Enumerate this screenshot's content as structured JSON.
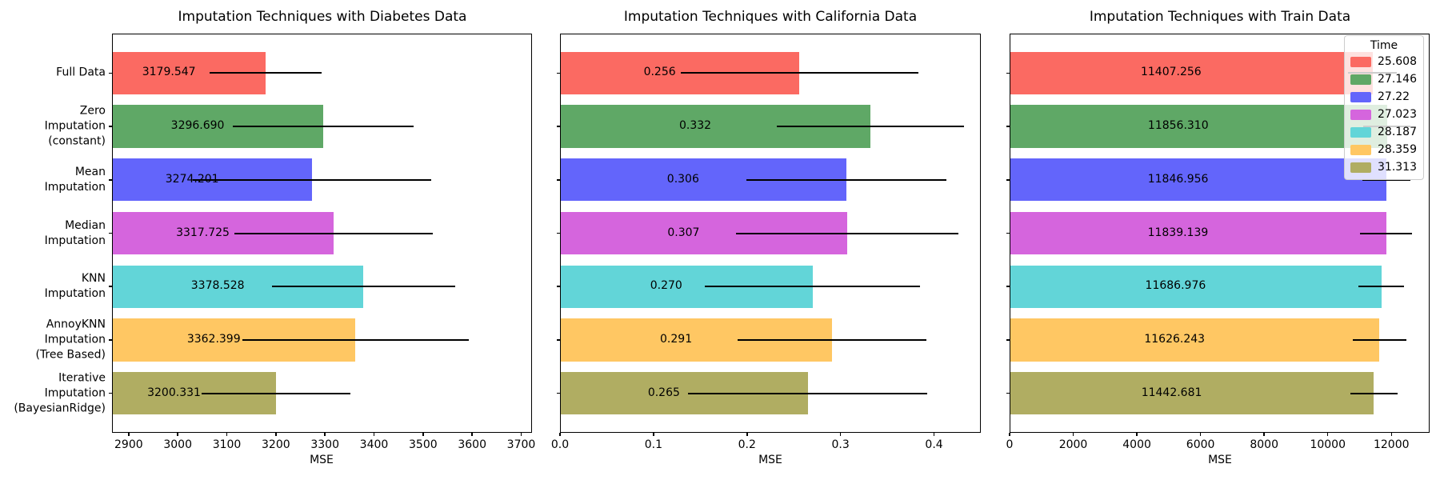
{
  "figure": {
    "background": "#ffffff"
  },
  "palette": [
    "#fb6a62",
    "#5fa866",
    "#6365fb",
    "#d565dd",
    "#62d5d8",
    "#ffc763",
    "#b0ad62"
  ],
  "error_bar_color": "#000000",
  "chart_data": [
    {
      "type": "bar",
      "orientation": "horizontal",
      "title": "Imputation Techniques with Diabetes Data",
      "xlabel": "MSE",
      "categories": [
        "Full Data",
        "Zero\nImputation\n(constant)",
        "Mean\nImputation",
        "Median\nImputation",
        "KNN\nImputation",
        "AnnoyKNN\nImputation\n(Tree Based)",
        "Iterative\nImputation\n(BayesianRidge)"
      ],
      "values": [
        3179.547,
        3296.69,
        3274.201,
        3317.725,
        3378.528,
        3362.399,
        3200.331
      ],
      "bar_labels": [
        "3179.547",
        "3296.690",
        "3274.201",
        "3317.725",
        "3378.528",
        "3362.399",
        "3200.331"
      ],
      "xerr": [
        114,
        184,
        243,
        202,
        187,
        230,
        152
      ],
      "xlim": [
        2866,
        3722
      ],
      "xticks": [
        2900,
        3000,
        3100,
        3200,
        3300,
        3400,
        3500,
        3600,
        3700
      ],
      "xtick_labels": [
        "2900",
        "3000",
        "3100",
        "3200",
        "3300",
        "3400",
        "3500",
        "3600",
        "3700"
      ],
      "show_category_labels": true,
      "grid": false
    },
    {
      "type": "bar",
      "orientation": "horizontal",
      "title": "Imputation Techniques with California Data",
      "xlabel": "MSE",
      "categories": [
        "Full Data",
        "Zero\nImputation\n(constant)",
        "Mean\nImputation",
        "Median\nImputation",
        "KNN\nImputation",
        "AnnoyKNN\nImputation\n(Tree Based)",
        "Iterative\nImputation\n(BayesianRidge)"
      ],
      "values": [
        0.256,
        0.332,
        0.306,
        0.307,
        0.27,
        0.291,
        0.265
      ],
      "bar_labels": [
        "0.256",
        "0.332",
        "0.306",
        "0.307",
        "0.270",
        "0.291",
        "0.265"
      ],
      "xerr": [
        0.127,
        0.1,
        0.107,
        0.119,
        0.115,
        0.101,
        0.128
      ],
      "xlim": [
        0,
        0.45
      ],
      "xticks": [
        0.0,
        0.1,
        0.2,
        0.3,
        0.4
      ],
      "xtick_labels": [
        "0.0",
        "0.1",
        "0.2",
        "0.3",
        "0.4"
      ],
      "show_category_labels": false,
      "grid": false
    },
    {
      "type": "bar",
      "orientation": "horizontal",
      "title": "Imputation Techniques with Train Data",
      "xlabel": "MSE",
      "categories": [
        "Full Data",
        "Zero\nImputation\n(constant)",
        "Mean\nImputation",
        "Median\nImputation",
        "KNN\nImputation",
        "AnnoyKNN\nImputation\n(Tree Based)",
        "Iterative\nImputation\n(BayesianRidge)"
      ],
      "values": [
        11407.256,
        11856.31,
        11846.956,
        11839.139,
        11686.976,
        11626.243,
        11442.681
      ],
      "bar_labels": [
        "11407.256",
        "11856.310",
        "11846.956",
        "11839.139",
        "11686.976",
        "11626.243",
        "11442.681"
      ],
      "xerr": [
        760,
        750,
        760,
        815,
        715,
        840,
        740
      ],
      "xlim": [
        0,
        13200
      ],
      "xticks": [
        0,
        2000,
        4000,
        6000,
        8000,
        10000,
        12000
      ],
      "xtick_labels": [
        "0",
        "2000",
        "4000",
        "6000",
        "8000",
        "10000",
        "12000"
      ],
      "show_category_labels": false,
      "grid": false,
      "legend": {
        "title": "Time",
        "entries": [
          {
            "label": "25.608",
            "color": "#fb6a62"
          },
          {
            "label": "27.146",
            "color": "#5fa866"
          },
          {
            "label": "27.22",
            "color": "#6365fb"
          },
          {
            "label": "27.023",
            "color": "#d565dd"
          },
          {
            "label": "28.187",
            "color": "#62d5d8"
          },
          {
            "label": "28.359",
            "color": "#ffc763"
          },
          {
            "label": "31.313",
            "color": "#b0ad62"
          }
        ]
      }
    }
  ]
}
